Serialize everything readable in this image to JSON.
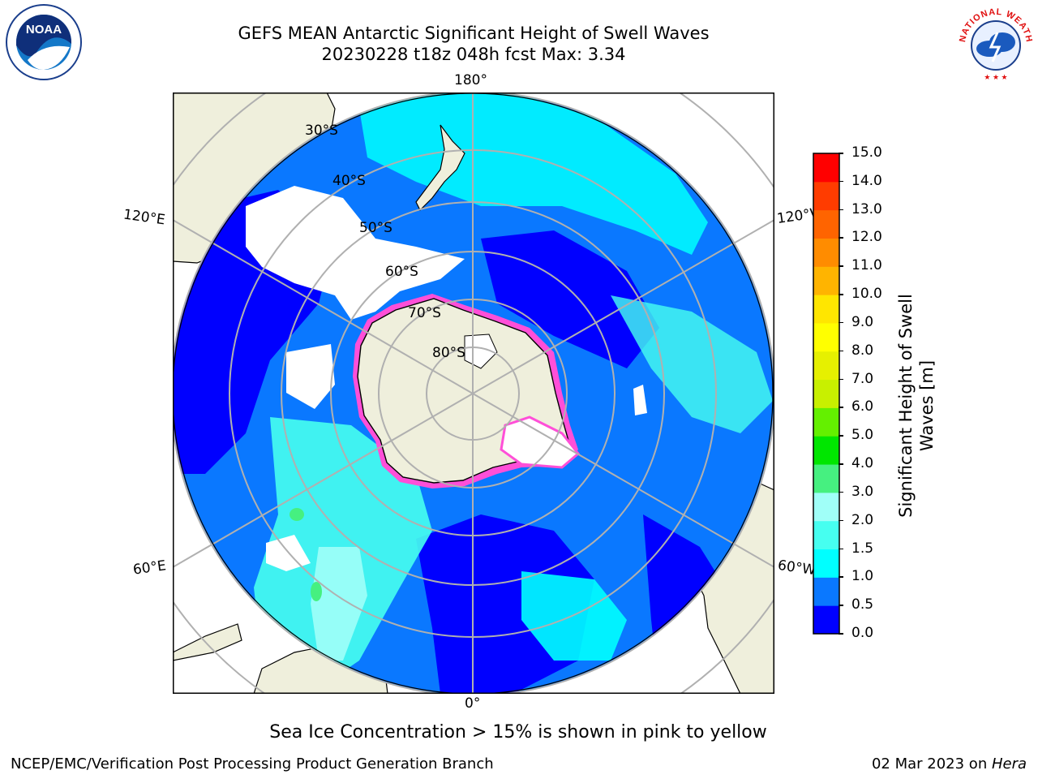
{
  "header": {
    "title_line1": "GEFS MEAN Antarctic Significant Height of Swell Waves",
    "title_line2": "20230228 t18z 048h fcst   Max: 3.34",
    "left_logo_text": "NOAA",
    "right_logo_text": "NATIONAL WEATHER SERVICE"
  },
  "map": {
    "projection": "south polar stereographic",
    "longitude_labels": [
      "180°",
      "120°E",
      "120°W",
      "60°E",
      "60°W",
      "0°"
    ],
    "latitude_labels": [
      "30°S",
      "40°S",
      "50°S",
      "60°S",
      "70°S",
      "80°S"
    ],
    "colors": {
      "land": "#efefdc",
      "no_data": "#ffffff",
      "grid": "#b0b0b0"
    }
  },
  "colorbar": {
    "label_line1": "Significant Height of Swell",
    "label_line2": "Waves [m]",
    "ticks": [
      "0.0",
      "0.5",
      "1.0",
      "1.5",
      "2.0",
      "3.0",
      "4.0",
      "5.0",
      "6.0",
      "7.0",
      "8.0",
      "9.0",
      "10.0",
      "11.0",
      "12.0",
      "13.0",
      "14.0",
      "15.0"
    ],
    "colors": [
      "#0000ff",
      "#0a78ff",
      "#00ffff",
      "#46fff0",
      "#a0fff8",
      "#46f080",
      "#00e600",
      "#64f000",
      "#c8f000",
      "#e6f000",
      "#ffff00",
      "#ffe600",
      "#ffb400",
      "#ff8c00",
      "#ff6400",
      "#ff3c00",
      "#ff0000"
    ]
  },
  "note": "Sea Ice Concentration > 15% is shown in pink to yellow",
  "footer": {
    "left": "NCEP/EMC/Verification Post Processing Product Generation Branch",
    "right_date": "02 Mar 2023 on ",
    "right_machine": "Hera"
  }
}
